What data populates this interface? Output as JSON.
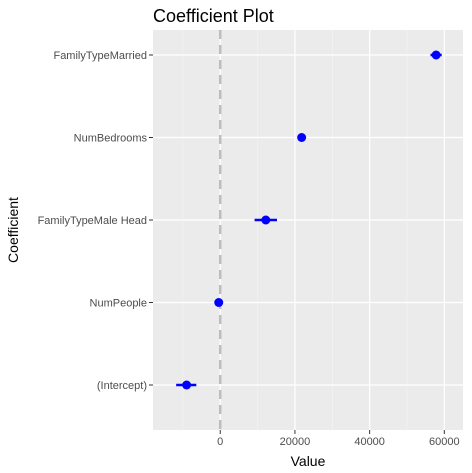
{
  "chart_data": {
    "type": "scatter",
    "title": "Coefficient Plot",
    "xlabel": "Value",
    "ylabel": "Coefficient",
    "xlim": [
      -18000,
      65000
    ],
    "x_ticks": [
      0,
      20000,
      40000,
      60000
    ],
    "x_tick_labels": [
      "0",
      "20000",
      "40000",
      "60000"
    ],
    "reference_line": {
      "x": 0,
      "style": "dashed",
      "color": "#bdbdbd"
    },
    "grid": true,
    "panel_background": "#ebebeb",
    "point_color": "#0000ff",
    "categories": [
      "(Intercept)",
      "NumPeople",
      "FamilyTypeMale Head",
      "NumBedrooms",
      "FamilyTypeMarried"
    ],
    "points": [
      {
        "label": "(Intercept)",
        "value": -9000,
        "low": -11800,
        "high": -6400
      },
      {
        "label": "NumPeople",
        "value": -400,
        "low": -1100,
        "high": 300
      },
      {
        "label": "FamilyTypeMale Head",
        "value": 12200,
        "low": 9200,
        "high": 15200
      },
      {
        "label": "NumBedrooms",
        "value": 21800,
        "low": 21200,
        "high": 22400
      },
      {
        "label": "FamilyTypeMarried",
        "value": 57800,
        "low": 56300,
        "high": 59300
      }
    ]
  }
}
